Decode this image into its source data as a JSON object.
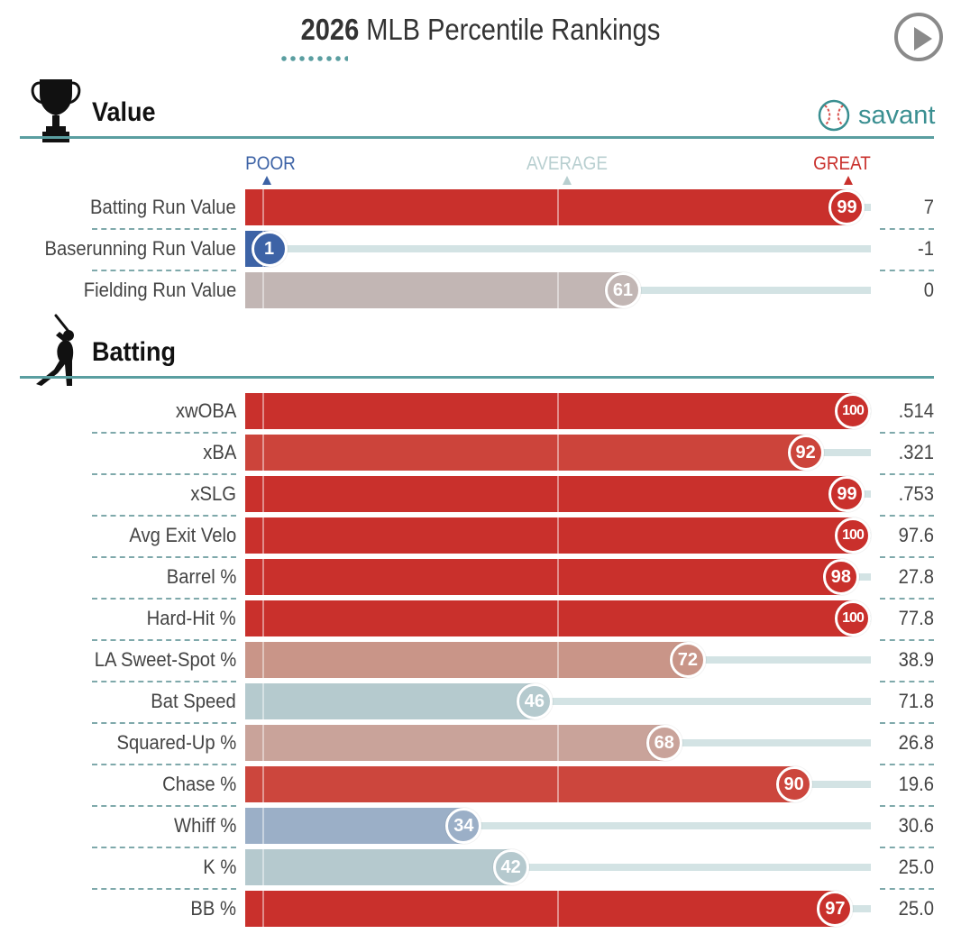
{
  "header": {
    "year": "2026",
    "title": "MLB Percentile Rankings"
  },
  "brand": {
    "name": "savant"
  },
  "axis": {
    "poor": "POOR",
    "average": "AVERAGE",
    "great": "GREAT"
  },
  "colors": {
    "poor": "#3d63a6",
    "average_label": "#b8cfd0",
    "great": "#c9302c",
    "rule": "#5a9ea0",
    "track": "#d3e3e4"
  },
  "chart_data": {
    "type": "bar",
    "orientation": "horizontal",
    "title": "2026 MLB Percentile Rankings",
    "xlim": [
      0,
      100
    ],
    "x_reference": {
      "POOR": 0,
      "AVERAGE": 50,
      "GREAT": 100
    },
    "sections": [
      {
        "name": "Value",
        "icon": "trophy-icon",
        "rows": [
          {
            "label": "Batting Run Value",
            "percentile": 99,
            "value": "7",
            "color": "#c9302c"
          },
          {
            "label": "Baserunning Run Value",
            "percentile": 1,
            "value": "-1",
            "color": "#3d63a6"
          },
          {
            "label": "Fielding Run Value",
            "percentile": 61,
            "value": "0",
            "color": "#c2b6b4"
          }
        ]
      },
      {
        "name": "Batting",
        "icon": "batter-icon",
        "rows": [
          {
            "label": "xwOBA",
            "percentile": 100,
            "value": ".514",
            "color": "#c9302c"
          },
          {
            "label": "xBA",
            "percentile": 92,
            "value": ".321",
            "color": "#cc443b"
          },
          {
            "label": "xSLG",
            "percentile": 99,
            "value": ".753",
            "color": "#c9302c"
          },
          {
            "label": "Avg Exit Velo",
            "percentile": 100,
            "value": "97.6",
            "color": "#c9302c"
          },
          {
            "label": "Barrel %",
            "percentile": 98,
            "value": "27.8",
            "color": "#c9302c"
          },
          {
            "label": "Hard-Hit %",
            "percentile": 100,
            "value": "77.8",
            "color": "#c9302c"
          },
          {
            "label": "LA Sweet-Spot %",
            "percentile": 72,
            "value": "38.9",
            "color": "#c99588"
          },
          {
            "label": "Bat Speed",
            "percentile": 46,
            "value": "71.8",
            "color": "#b5cace"
          },
          {
            "label": "Squared-Up %",
            "percentile": 68,
            "value": "26.8",
            "color": "#c9a39a"
          },
          {
            "label": "Chase %",
            "percentile": 90,
            "value": "19.6",
            "color": "#cc463d"
          },
          {
            "label": "Whiff %",
            "percentile": 34,
            "value": "30.6",
            "color": "#9bafc7"
          },
          {
            "label": "K %",
            "percentile": 42,
            "value": "25.0",
            "color": "#b5c9ce"
          },
          {
            "label": "BB %",
            "percentile": 97,
            "value": "25.0",
            "color": "#c9302c"
          }
        ]
      }
    ]
  }
}
